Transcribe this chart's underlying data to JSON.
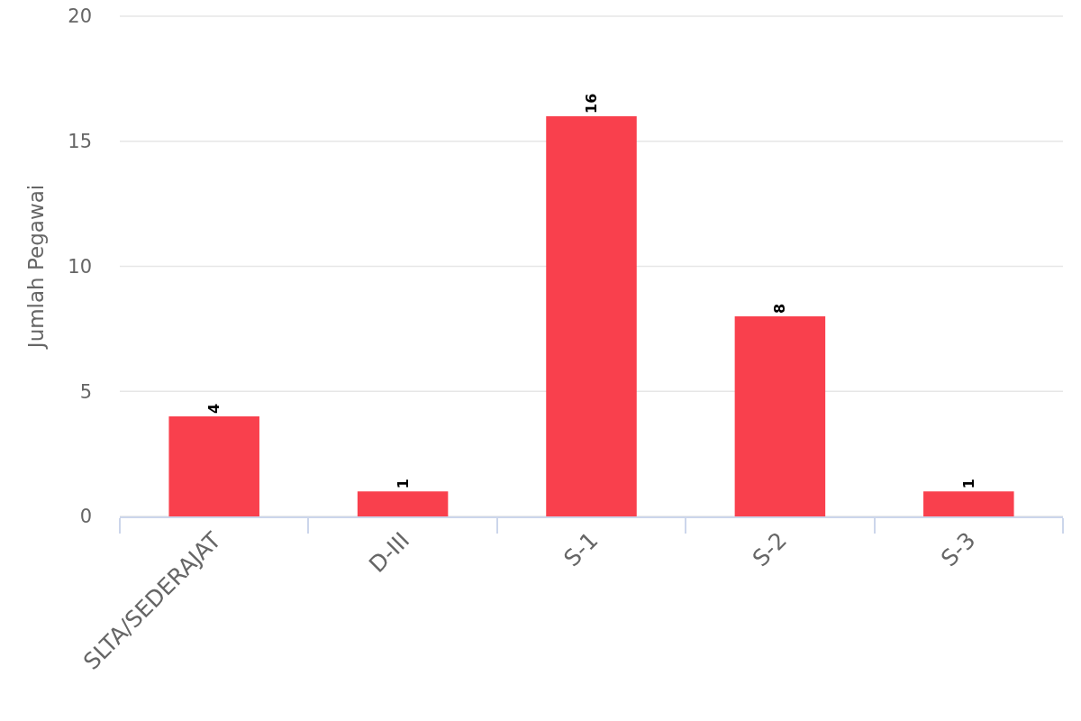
{
  "chart_data": {
    "type": "bar",
    "ylabel": "Jumlah Pegawai",
    "categories": [
      "SLTA/SEDERAJAT",
      "D-III",
      "S-1",
      "S-2",
      "S-3"
    ],
    "values": [
      4,
      1,
      16,
      8,
      1
    ],
    "color": "#f9404d",
    "ylim": [
      0,
      20
    ],
    "yticks": [
      0,
      5,
      10,
      15,
      20
    ],
    "grid": "y",
    "data_labels": true
  }
}
